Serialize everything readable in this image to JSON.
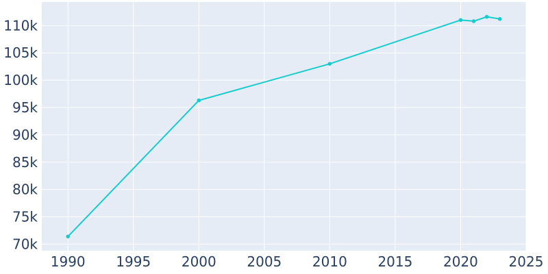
{
  "chart_data": {
    "type": "line",
    "title": "",
    "xlabel": "",
    "ylabel": "",
    "x": [
      1990,
      2000,
      2010,
      2020,
      2021,
      2022,
      2023
    ],
    "series": [
      {
        "values": [
          71400,
          96300,
          103000,
          111000,
          110800,
          111600,
          111200
        ]
      }
    ],
    "xlim": [
      1988,
      2025
    ],
    "ylim": [
      68800,
      114300
    ],
    "x_ticks": [
      1990,
      1995,
      2000,
      2005,
      2010,
      2015,
      2020,
      2025
    ],
    "x_tick_labels": [
      "1990",
      "1995",
      "2000",
      "2005",
      "2010",
      "2015",
      "2020",
      "2025"
    ],
    "y_ticks": [
      70000,
      75000,
      80000,
      85000,
      90000,
      95000,
      100000,
      105000,
      110000
    ],
    "y_tick_labels": [
      "70k",
      "75k",
      "80k",
      "85k",
      "90k",
      "95k",
      "100k",
      "105k",
      "110k"
    ],
    "grid": true,
    "legend": "none",
    "colors": {
      "line": "#17cccc",
      "plot_bg": "#e5ecf6",
      "grid": "#ffffff",
      "text": "#2a3f5f"
    }
  }
}
